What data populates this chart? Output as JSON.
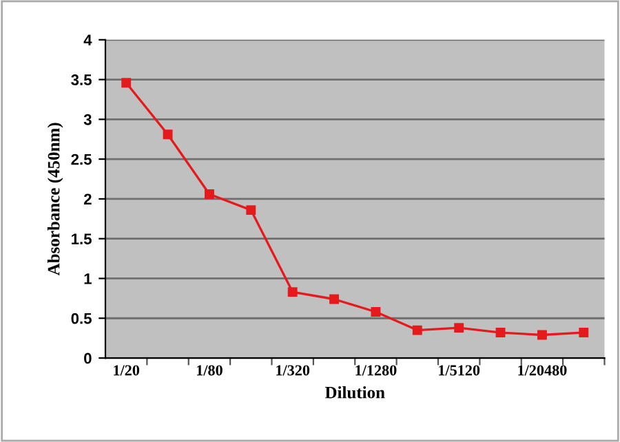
{
  "chart_data": {
    "type": "line",
    "xlabel": "Dilution",
    "ylabel": "Absorbance (450nm)",
    "categories": [
      "1/20",
      null,
      "1/80",
      null,
      "1/320",
      null,
      "1/1280",
      null,
      "1/5120",
      null,
      "1/20480",
      null
    ],
    "series": [
      {
        "color": "#e41a1c",
        "values": [
          3.46,
          2.81,
          2.06,
          1.86,
          0.83,
          0.74,
          0.58,
          0.35,
          0.38,
          0.32,
          0.29,
          0.32
        ]
      }
    ],
    "ylim": [
      0,
      4
    ],
    "yticks": [
      0,
      0.5,
      1,
      1.5,
      2,
      2.5,
      3,
      3.5,
      4
    ],
    "grid": "y",
    "marker": "square",
    "line_style": "solid",
    "legend": false
  }
}
